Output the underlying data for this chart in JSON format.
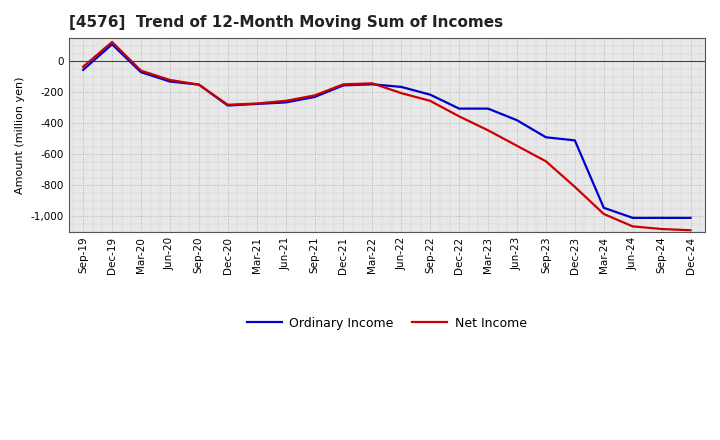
{
  "title": "[4576]  Trend of 12-Month Moving Sum of Incomes",
  "ylabel": "Amount (million yen)",
  "x_labels": [
    "Sep-19",
    "Dec-19",
    "Mar-20",
    "Jun-20",
    "Sep-20",
    "Dec-20",
    "Mar-21",
    "Jun-21",
    "Sep-21",
    "Dec-21",
    "Mar-22",
    "Jun-22",
    "Sep-22",
    "Dec-22",
    "Mar-23",
    "Jun-23",
    "Sep-23",
    "Dec-23",
    "Mar-24",
    "Jun-24",
    "Sep-24",
    "Dec-24"
  ],
  "ordinary_income": [
    -55,
    110,
    -70,
    -130,
    -150,
    -285,
    -275,
    -265,
    -230,
    -155,
    -148,
    -165,
    -215,
    -305,
    -305,
    -380,
    -490,
    -510,
    -945,
    -1010,
    -1010,
    -1010
  ],
  "net_income": [
    -35,
    125,
    -60,
    -120,
    -150,
    -280,
    -272,
    -255,
    -220,
    -148,
    -142,
    -205,
    -255,
    -355,
    -445,
    -545,
    -645,
    -810,
    -985,
    -1065,
    -1082,
    -1090
  ],
  "ordinary_color": "#0000cc",
  "net_color": "#cc0000",
  "ylim": [
    -1100,
    150
  ],
  "yticks": [
    0,
    -200,
    -400,
    -600,
    -800,
    -1000
  ],
  "plot_bg_color": "#e8e8e8",
  "fig_bg_color": "#ffffff",
  "grid_color": "#aaaaaa",
  "border_color": "#555555",
  "line_width": 1.6,
  "title_fontsize": 11,
  "label_fontsize": 8,
  "tick_fontsize": 7.5,
  "legend_fontsize": 9
}
